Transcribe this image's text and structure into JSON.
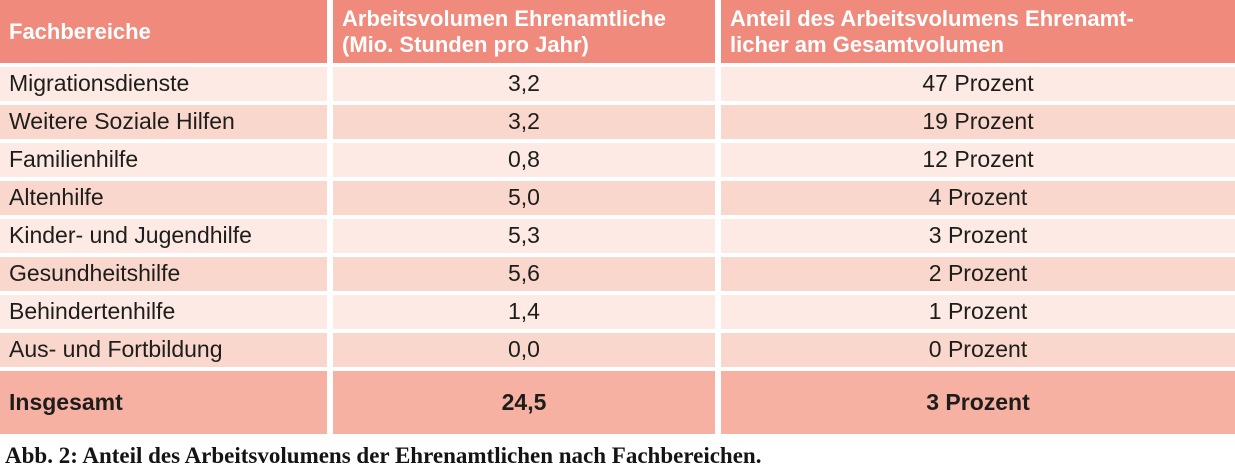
{
  "colors": {
    "header_bg": "#f08a7c",
    "row_light_bg": "#fdeae4",
    "row_shaded_bg": "#fad7cd",
    "total_row_bg": "#f6b1a3",
    "header_text": "#ffffff",
    "body_text": "#1d1d1b",
    "divider": "#ffffff"
  },
  "table": {
    "headers": [
      "Fachbereiche",
      "Arbeitsvolumen Ehrenamtliche\n(Mio. Stunden pro Jahr)",
      "Anteil des Arbeitsvolumens Ehrenamt-\nlicher am Gesamtvolumen"
    ],
    "rows": [
      {
        "fachbereich": "Migrationsdienste",
        "volumen": "3,2",
        "anteil": "47 Prozent"
      },
      {
        "fachbereich": "Weitere Soziale Hilfen",
        "volumen": "3,2",
        "anteil": "19 Prozent"
      },
      {
        "fachbereich": "Familienhilfe",
        "volumen": "0,8",
        "anteil": "12 Prozent"
      },
      {
        "fachbereich": "Altenhilfe",
        "volumen": "5,0",
        "anteil": "4 Prozent"
      },
      {
        "fachbereich": "Kinder- und Jugendhilfe",
        "volumen": "5,3",
        "anteil": "3 Prozent"
      },
      {
        "fachbereich": "Gesundheitshilfe",
        "volumen": "5,6",
        "anteil": "2 Prozent"
      },
      {
        "fachbereich": "Behindertenhilfe",
        "volumen": "1,4",
        "anteil": "1 Prozent"
      },
      {
        "fachbereich": "Aus- und Fortbildung",
        "volumen": "0,0",
        "anteil": "0 Prozent"
      }
    ],
    "total": {
      "fachbereich": "Insgesamt",
      "volumen": "24,5",
      "anteil": "3 Prozent"
    }
  },
  "caption": "Abb. 2: Anteil des Arbeitsvolumens der Ehrenamtlichen nach Fachbereichen."
}
